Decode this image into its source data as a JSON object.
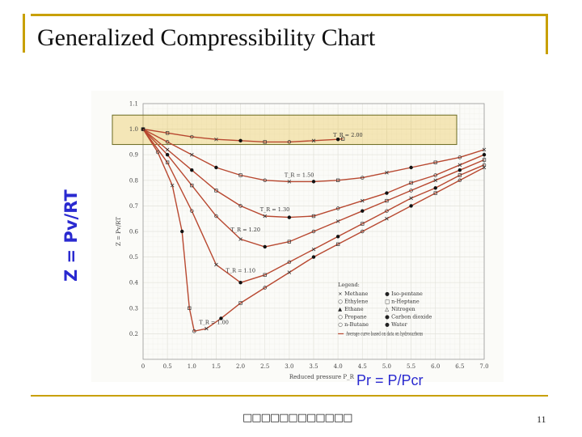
{
  "slide": {
    "title": "Generalized Compressibility Chart",
    "y_label": "Z = Pv/RT",
    "x_label": "Pr = P/Pcr",
    "footer": "□□□□□□□□□□□□",
    "page_number": "11",
    "frame_color": "#c8a000",
    "axis_label_color": "#2a2ad0",
    "highlight_color": "#e8c040"
  },
  "chart_data": {
    "type": "line",
    "title": "",
    "xlabel": "Reduced pressure P_R",
    "ylabel": "Z = Pv/RT",
    "xlim": [
      0,
      7
    ],
    "ylim": [
      0.1,
      1.1
    ],
    "x_ticks": [
      "0",
      "0.5",
      "1.0",
      "1.5",
      "2.0",
      "2.5",
      "3.0",
      "3.5",
      "4.0",
      "4.5",
      "5.0",
      "5.5",
      "6.0",
      "6.5",
      "7.0"
    ],
    "y_ticks": [
      "0.2",
      "0.3",
      "0.4",
      "0.5",
      "0.6",
      "0.7",
      "0.8",
      "0.9",
      "1.0",
      "1.1"
    ],
    "grid": true,
    "curve_color": "#b84830",
    "series": [
      {
        "name": "T_R = 2.00",
        "x": [
          0,
          0.5,
          1,
          1.5,
          2,
          2.5,
          3,
          3.5,
          4,
          4.1
        ],
        "y": [
          1.0,
          0.985,
          0.97,
          0.96,
          0.955,
          0.95,
          0.95,
          0.955,
          0.96,
          0.962
        ]
      },
      {
        "name": "T_R = 1.50",
        "x": [
          0,
          0.5,
          1,
          1.5,
          2,
          2.5,
          3,
          3.5,
          4,
          4.5,
          5,
          5.5,
          6,
          6.5,
          7
        ],
        "y": [
          1.0,
          0.95,
          0.9,
          0.85,
          0.82,
          0.8,
          0.795,
          0.795,
          0.8,
          0.81,
          0.83,
          0.85,
          0.87,
          0.89,
          0.92
        ]
      },
      {
        "name": "T_R = 1.30",
        "x": [
          0,
          0.5,
          1,
          1.5,
          2,
          2.5,
          3,
          3.5,
          4,
          4.5,
          5,
          5.5,
          6,
          6.5,
          7
        ],
        "y": [
          1.0,
          0.92,
          0.84,
          0.76,
          0.7,
          0.66,
          0.655,
          0.66,
          0.69,
          0.72,
          0.75,
          0.79,
          0.82,
          0.86,
          0.9
        ]
      },
      {
        "name": "T_R = 1.20",
        "x": [
          0,
          0.5,
          1,
          1.5,
          2,
          2.5,
          3,
          3.5,
          4,
          4.5,
          5,
          5.5,
          6,
          6.5,
          7
        ],
        "y": [
          1.0,
          0.9,
          0.78,
          0.66,
          0.57,
          0.54,
          0.56,
          0.6,
          0.64,
          0.68,
          0.72,
          0.76,
          0.8,
          0.84,
          0.88
        ]
      },
      {
        "name": "T_R = 1.10",
        "x": [
          0,
          0.5,
          1,
          1.5,
          2,
          2.5,
          3,
          3.5,
          4,
          4.5,
          5,
          5.5,
          6,
          6.5,
          7
        ],
        "y": [
          1.0,
          0.87,
          0.68,
          0.47,
          0.4,
          0.43,
          0.48,
          0.53,
          0.58,
          0.63,
          0.68,
          0.73,
          0.77,
          0.82,
          0.86
        ]
      },
      {
        "name": "T_R = 1.00",
        "x": [
          0,
          0.3,
          0.6,
          0.8,
          0.95,
          1.05,
          1.3,
          1.6,
          2,
          2.5,
          3,
          3.5,
          4,
          4.5,
          5,
          5.5,
          6,
          6.5,
          7
        ],
        "y": [
          1.0,
          0.91,
          0.78,
          0.6,
          0.3,
          0.21,
          0.22,
          0.26,
          0.32,
          0.38,
          0.44,
          0.5,
          0.55,
          0.6,
          0.65,
          0.7,
          0.75,
          0.8,
          0.85
        ]
      }
    ],
    "curve_labels": [
      "T_R = 2.00",
      "T_R = 1.50",
      "T_R = 1.30",
      "T_R = 1.20",
      "T_R = 1.10",
      "T_R = 1.00"
    ],
    "legend": {
      "title": "Legend:",
      "placement": "bottom-right",
      "items": [
        {
          "symbol": "×",
          "label": "Methane"
        },
        {
          "symbol": "○",
          "label": "Ethylene"
        },
        {
          "symbol": "▲",
          "label": "Ethane"
        },
        {
          "symbol": "○",
          "label": "Propane"
        },
        {
          "symbol": "○",
          "label": "n-Butane"
        },
        {
          "symbol": "●",
          "label": "Iso-pentane"
        },
        {
          "symbol": "□",
          "label": "n-Heptane"
        },
        {
          "symbol": "△",
          "label": "Nitrogen"
        },
        {
          "symbol": "●",
          "label": "Carbon dioxide"
        },
        {
          "symbol": "●",
          "label": "Water"
        }
      ],
      "note": "Average curve based on data on hydrocarbons"
    },
    "y_axis_inner_label": "Z = Pv/RT",
    "highlight_band": [
      0.94,
      1.055
    ]
  }
}
